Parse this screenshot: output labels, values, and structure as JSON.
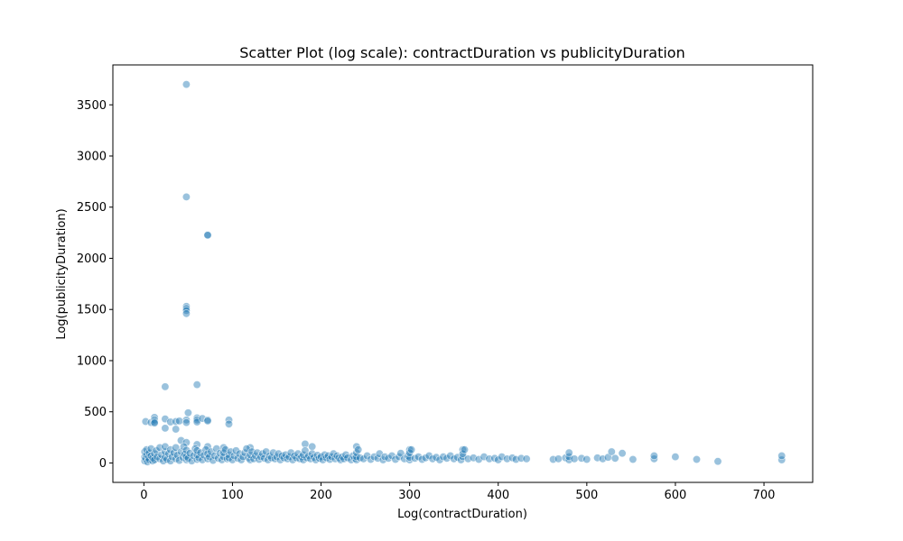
{
  "chart_data": {
    "type": "scatter",
    "title": "Scatter Plot (log scale): contractDuration vs publicityDuration",
    "xlabel": "Log(contractDuration)",
    "ylabel": "Log(publicityDuration)",
    "xlim": [
      -35,
      755
    ],
    "ylim": [
      -190,
      3890
    ],
    "xticks": [
      0,
      100,
      200,
      300,
      400,
      500,
      600,
      700
    ],
    "yticks": [
      0,
      500,
      1000,
      1500,
      2000,
      2500,
      3000,
      3500
    ],
    "grid": false,
    "legend": "none",
    "marker_color": "#1f77b4",
    "marker_alpha": 0.45,
    "series": [
      {
        "points": [
          [
            48,
            3700
          ],
          [
            48,
            2600
          ],
          [
            72,
            2230
          ],
          [
            72,
            2225
          ],
          [
            48,
            1530
          ],
          [
            48,
            1510
          ],
          [
            48,
            1490
          ],
          [
            48,
            1460
          ],
          [
            24,
            745
          ],
          [
            60,
            765
          ],
          [
            2,
            405
          ],
          [
            8,
            395
          ],
          [
            12,
            445
          ],
          [
            12,
            420
          ],
          [
            12,
            400
          ],
          [
            12,
            390
          ],
          [
            24,
            430
          ],
          [
            30,
            400
          ],
          [
            36,
            405
          ],
          [
            40,
            410
          ],
          [
            36,
            330
          ],
          [
            24,
            340
          ],
          [
            48,
            420
          ],
          [
            48,
            395
          ],
          [
            50,
            490
          ],
          [
            60,
            440
          ],
          [
            60,
            420
          ],
          [
            60,
            400
          ],
          [
            66,
            435
          ],
          [
            72,
            420
          ],
          [
            72,
            410
          ],
          [
            96,
            420
          ],
          [
            96,
            380
          ],
          [
            42,
            220
          ],
          [
            48,
            200
          ],
          [
            60,
            180
          ],
          [
            72,
            160
          ],
          [
            90,
            150
          ],
          [
            120,
            150
          ],
          [
            182,
            185
          ],
          [
            190,
            160
          ],
          [
            240,
            160
          ],
          [
            300,
            130
          ],
          [
            360,
            130
          ],
          [
            1,
            20
          ],
          [
            1,
            60
          ],
          [
            1,
            110
          ],
          [
            2,
            40
          ],
          [
            3,
            80
          ],
          [
            3,
            130
          ],
          [
            4,
            10
          ],
          [
            5,
            50
          ],
          [
            6,
            30
          ],
          [
            6,
            100
          ],
          [
            8,
            70
          ],
          [
            8,
            140
          ],
          [
            10,
            20
          ],
          [
            10,
            50
          ],
          [
            12,
            90
          ],
          [
            12,
            30
          ],
          [
            14,
            120
          ],
          [
            15,
            60
          ],
          [
            18,
            40
          ],
          [
            18,
            150
          ],
          [
            20,
            80
          ],
          [
            22,
            20
          ],
          [
            24,
            55
          ],
          [
            24,
            110
          ],
          [
            24,
            160
          ],
          [
            26,
            35
          ],
          [
            28,
            90
          ],
          [
            30,
            20
          ],
          [
            30,
            130
          ],
          [
            32,
            60
          ],
          [
            34,
            100
          ],
          [
            36,
            40
          ],
          [
            36,
            150
          ],
          [
            38,
            75
          ],
          [
            40,
            25
          ],
          [
            42,
            110
          ],
          [
            44,
            55
          ],
          [
            45,
            160
          ],
          [
            46,
            85
          ],
          [
            48,
            30
          ],
          [
            48,
            65
          ],
          [
            48,
            125
          ],
          [
            50,
            45
          ],
          [
            52,
            95
          ],
          [
            54,
            20
          ],
          [
            56,
            70
          ],
          [
            58,
            140
          ],
          [
            60,
            35
          ],
          [
            60,
            80
          ],
          [
            60,
            120
          ],
          [
            62,
            50
          ],
          [
            64,
            100
          ],
          [
            66,
            30
          ],
          [
            68,
            75
          ],
          [
            70,
            130
          ],
          [
            72,
            40
          ],
          [
            72,
            90
          ],
          [
            74,
            60
          ],
          [
            76,
            110
          ],
          [
            78,
            25
          ],
          [
            80,
            70
          ],
          [
            82,
            140
          ],
          [
            84,
            45
          ],
          [
            86,
            95
          ],
          [
            88,
            30
          ],
          [
            90,
            60
          ],
          [
            90,
            100
          ],
          [
            92,
            130
          ],
          [
            94,
            40
          ],
          [
            96,
            80
          ],
          [
            96,
            50
          ],
          [
            98,
            110
          ],
          [
            100,
            30
          ],
          [
            102,
            70
          ],
          [
            104,
            120
          ],
          [
            106,
            45
          ],
          [
            108,
            90
          ],
          [
            110,
            30
          ],
          [
            112,
            60
          ],
          [
            114,
            100
          ],
          [
            116,
            140
          ],
          [
            118,
            50
          ],
          [
            120,
            30
          ],
          [
            120,
            80
          ],
          [
            122,
            110
          ],
          [
            124,
            40
          ],
          [
            126,
            70
          ],
          [
            128,
            100
          ],
          [
            130,
            35
          ],
          [
            132,
            60
          ],
          [
            134,
            90
          ],
          [
            136,
            45
          ],
          [
            138,
            110
          ],
          [
            140,
            30
          ],
          [
            142,
            70
          ],
          [
            144,
            50
          ],
          [
            146,
            100
          ],
          [
            148,
            40
          ],
          [
            150,
            60
          ],
          [
            152,
            90
          ],
          [
            154,
            30
          ],
          [
            156,
            70
          ],
          [
            158,
            50
          ],
          [
            160,
            80
          ],
          [
            162,
            40
          ],
          [
            164,
            60
          ],
          [
            166,
            100
          ],
          [
            168,
            30
          ],
          [
            170,
            70
          ],
          [
            172,
            50
          ],
          [
            174,
            90
          ],
          [
            176,
            40
          ],
          [
            178,
            60
          ],
          [
            180,
            30
          ],
          [
            180,
            80
          ],
          [
            182,
            120
          ],
          [
            184,
            50
          ],
          [
            186,
            70
          ],
          [
            188,
            40
          ],
          [
            190,
            90
          ],
          [
            192,
            55
          ],
          [
            194,
            30
          ],
          [
            196,
            75
          ],
          [
            198,
            45
          ],
          [
            200,
            60
          ],
          [
            202,
            30
          ],
          [
            204,
            80
          ],
          [
            206,
            50
          ],
          [
            208,
            70
          ],
          [
            210,
            35
          ],
          [
            212,
            60
          ],
          [
            214,
            90
          ],
          [
            216,
            40
          ],
          [
            218,
            70
          ],
          [
            220,
            50
          ],
          [
            222,
            30
          ],
          [
            224,
            60
          ],
          [
            226,
            40
          ],
          [
            228,
            80
          ],
          [
            230,
            50
          ],
          [
            234,
            30
          ],
          [
            236,
            70
          ],
          [
            238,
            45
          ],
          [
            240,
            30
          ],
          [
            240,
            60
          ],
          [
            240,
            100
          ],
          [
            242,
            130
          ],
          [
            244,
            50
          ],
          [
            248,
            40
          ],
          [
            252,
            70
          ],
          [
            256,
            35
          ],
          [
            260,
            60
          ],
          [
            264,
            45
          ],
          [
            266,
            90
          ],
          [
            270,
            30
          ],
          [
            272,
            60
          ],
          [
            276,
            45
          ],
          [
            280,
            70
          ],
          [
            284,
            35
          ],
          [
            288,
            60
          ],
          [
            290,
            95
          ],
          [
            294,
            40
          ],
          [
            298,
            70
          ],
          [
            300,
            30
          ],
          [
            300,
            55
          ],
          [
            300,
            100
          ],
          [
            302,
            130
          ],
          [
            306,
            45
          ],
          [
            310,
            60
          ],
          [
            314,
            35
          ],
          [
            318,
            50
          ],
          [
            322,
            70
          ],
          [
            326,
            40
          ],
          [
            330,
            55
          ],
          [
            334,
            30
          ],
          [
            338,
            60
          ],
          [
            342,
            45
          ],
          [
            346,
            70
          ],
          [
            350,
            40
          ],
          [
            354,
            55
          ],
          [
            358,
            30
          ],
          [
            360,
            60
          ],
          [
            360,
            90
          ],
          [
            362,
            130
          ],
          [
            366,
            40
          ],
          [
            372,
            50
          ],
          [
            378,
            35
          ],
          [
            384,
            60
          ],
          [
            390,
            40
          ],
          [
            396,
            45
          ],
          [
            400,
            30
          ],
          [
            404,
            60
          ],
          [
            410,
            40
          ],
          [
            416,
            50
          ],
          [
            420,
            35
          ],
          [
            426,
            45
          ],
          [
            432,
            40
          ],
          [
            462,
            35
          ],
          [
            468,
            40
          ],
          [
            476,
            50
          ],
          [
            480,
            30
          ],
          [
            480,
            60
          ],
          [
            480,
            100
          ],
          [
            486,
            40
          ],
          [
            494,
            45
          ],
          [
            500,
            35
          ],
          [
            512,
            50
          ],
          [
            518,
            40
          ],
          [
            524,
            55
          ],
          [
            528,
            110
          ],
          [
            532,
            45
          ],
          [
            540,
            95
          ],
          [
            552,
            35
          ],
          [
            576,
            40
          ],
          [
            576,
            70
          ],
          [
            600,
            60
          ],
          [
            624,
            35
          ],
          [
            648,
            15
          ],
          [
            720,
            30
          ],
          [
            720,
            70
          ]
        ]
      }
    ]
  }
}
